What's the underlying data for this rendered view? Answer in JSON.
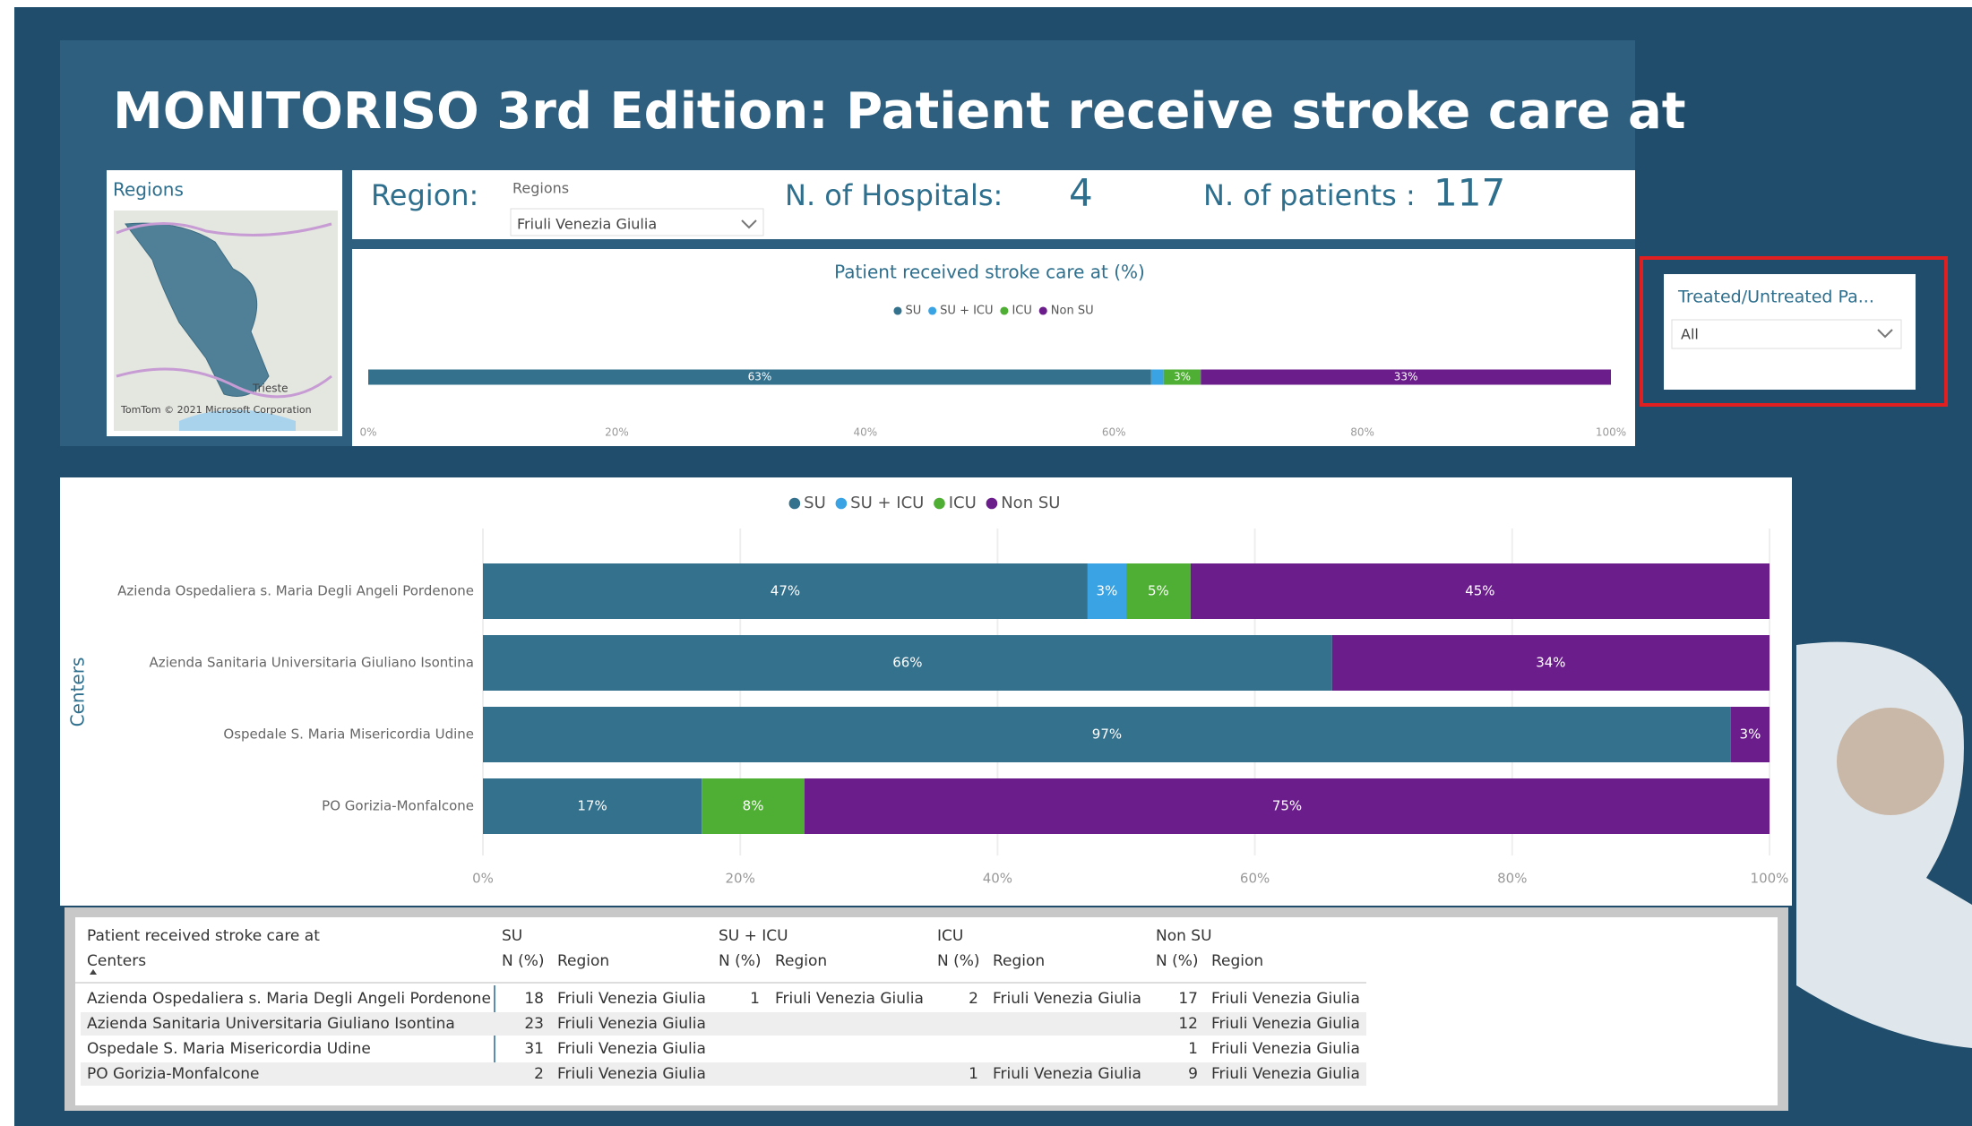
{
  "header": {
    "title": "MONITORISO 3rd Edition: Patient receive stroke care at"
  },
  "map": {
    "title": "Regions",
    "place": "Trieste",
    "attribution": "TomTom © 2021 Microsoft Corporation"
  },
  "filters": {
    "region_label": "Region:",
    "dropdown_title": "Regions",
    "dropdown_value": "Friuli Venezia Giulia"
  },
  "kpis": {
    "hospitals_label": "N. of Hospitals:",
    "hospitals": 4,
    "patients_label": "N. of patients :",
    "patients": 117
  },
  "slicer": {
    "title": "Treated/Untreated Pa...",
    "value": "All"
  },
  "chart_data": [
    {
      "type": "bar",
      "orientation": "horizontal",
      "stacked": true,
      "title": "Patient received stroke care at (%)",
      "legend": "top",
      "grid": false,
      "categories": [
        null
      ],
      "series": [
        {
          "name": "SU",
          "color": "#33718d",
          "values": [
            63
          ],
          "value_labels": [
            "63%"
          ]
        },
        {
          "name": "SU + ICU",
          "color": "#3aa3e3",
          "values": [
            1
          ],
          "value_labels": [
            null
          ]
        },
        {
          "name": "ICU",
          "color": "#4fae34",
          "values": [
            3
          ],
          "value_labels": [
            "3%"
          ]
        },
        {
          "name": "Non SU",
          "color": "#6b1d8c",
          "values": [
            33
          ],
          "value_labels": [
            "33%"
          ]
        }
      ],
      "xlim": [
        0,
        100
      ],
      "xticks": [
        {
          "value": 0,
          "label": "0%"
        },
        {
          "value": 20,
          "label": "20%"
        },
        {
          "value": 40,
          "label": "40%"
        },
        {
          "value": 60,
          "label": "60%"
        },
        {
          "value": 80,
          "label": "80%"
        },
        {
          "value": 100,
          "label": "100%"
        }
      ]
    },
    {
      "type": "bar",
      "orientation": "horizontal",
      "stacked": true,
      "ylabel": "Centers",
      "legend": "top",
      "grid": true,
      "categories": [
        "Azienda Ospedaliera s. Maria Degli Angeli Pordenone",
        "Azienda Sanitaria Universitaria Giuliano Isontina",
        "Ospedale S. Maria Misericordia Udine",
        "PO Gorizia-Monfalcone"
      ],
      "series": [
        {
          "name": "SU",
          "color": "#33718d",
          "values": [
            47,
            66,
            97,
            17
          ],
          "value_labels": [
            "47%",
            "66%",
            "97%",
            "17%"
          ]
        },
        {
          "name": "SU + ICU",
          "color": "#3aa3e3",
          "values": [
            3,
            null,
            null,
            null
          ],
          "value_labels": [
            "3%",
            null,
            null,
            null
          ]
        },
        {
          "name": "ICU",
          "color": "#4fae34",
          "values": [
            5,
            null,
            null,
            8
          ],
          "value_labels": [
            "5%",
            null,
            null,
            "8%"
          ]
        },
        {
          "name": "Non SU",
          "color": "#6b1d8c",
          "values": [
            45,
            34,
            3,
            75
          ],
          "value_labels": [
            "45%",
            "34%",
            "3%",
            "75%"
          ]
        }
      ],
      "xlim": [
        0,
        100
      ],
      "xticks": [
        {
          "value": 0,
          "label": "0%"
        },
        {
          "value": 20,
          "label": "20%"
        },
        {
          "value": 40,
          "label": "40%"
        },
        {
          "value": 60,
          "label": "60%"
        },
        {
          "value": 80,
          "label": "80%"
        },
        {
          "value": 100,
          "label": "100%"
        }
      ]
    }
  ],
  "table": {
    "groups": [
      "Patient received stroke care at",
      "SU",
      "SU + ICU",
      "ICU",
      "Non SU"
    ],
    "columns": [
      "Centers",
      "N (%)",
      "Region",
      "N (%)",
      "Region",
      "N (%)",
      "Region",
      "N (%)",
      "Region"
    ],
    "rows": [
      [
        "Azienda Ospedaliera s. Maria Degli Angeli Pordenone",
        18,
        "Friuli Venezia Giulia",
        1,
        "Friuli Venezia Giulia",
        2,
        "Friuli Venezia Giulia",
        17,
        "Friuli Venezia Giulia"
      ],
      [
        "Azienda Sanitaria Universitaria Giuliano Isontina",
        23,
        "Friuli Venezia Giulia",
        null,
        null,
        null,
        null,
        12,
        "Friuli Venezia Giulia"
      ],
      [
        "Ospedale S. Maria Misericordia Udine",
        31,
        "Friuli Venezia Giulia",
        null,
        null,
        null,
        null,
        1,
        "Friuli Venezia Giulia"
      ],
      [
        "PO Gorizia-Monfalcone",
        2,
        "Friuli Venezia Giulia",
        null,
        null,
        1,
        "Friuli Venezia Giulia",
        9,
        "Friuli Venezia Giulia"
      ]
    ]
  }
}
